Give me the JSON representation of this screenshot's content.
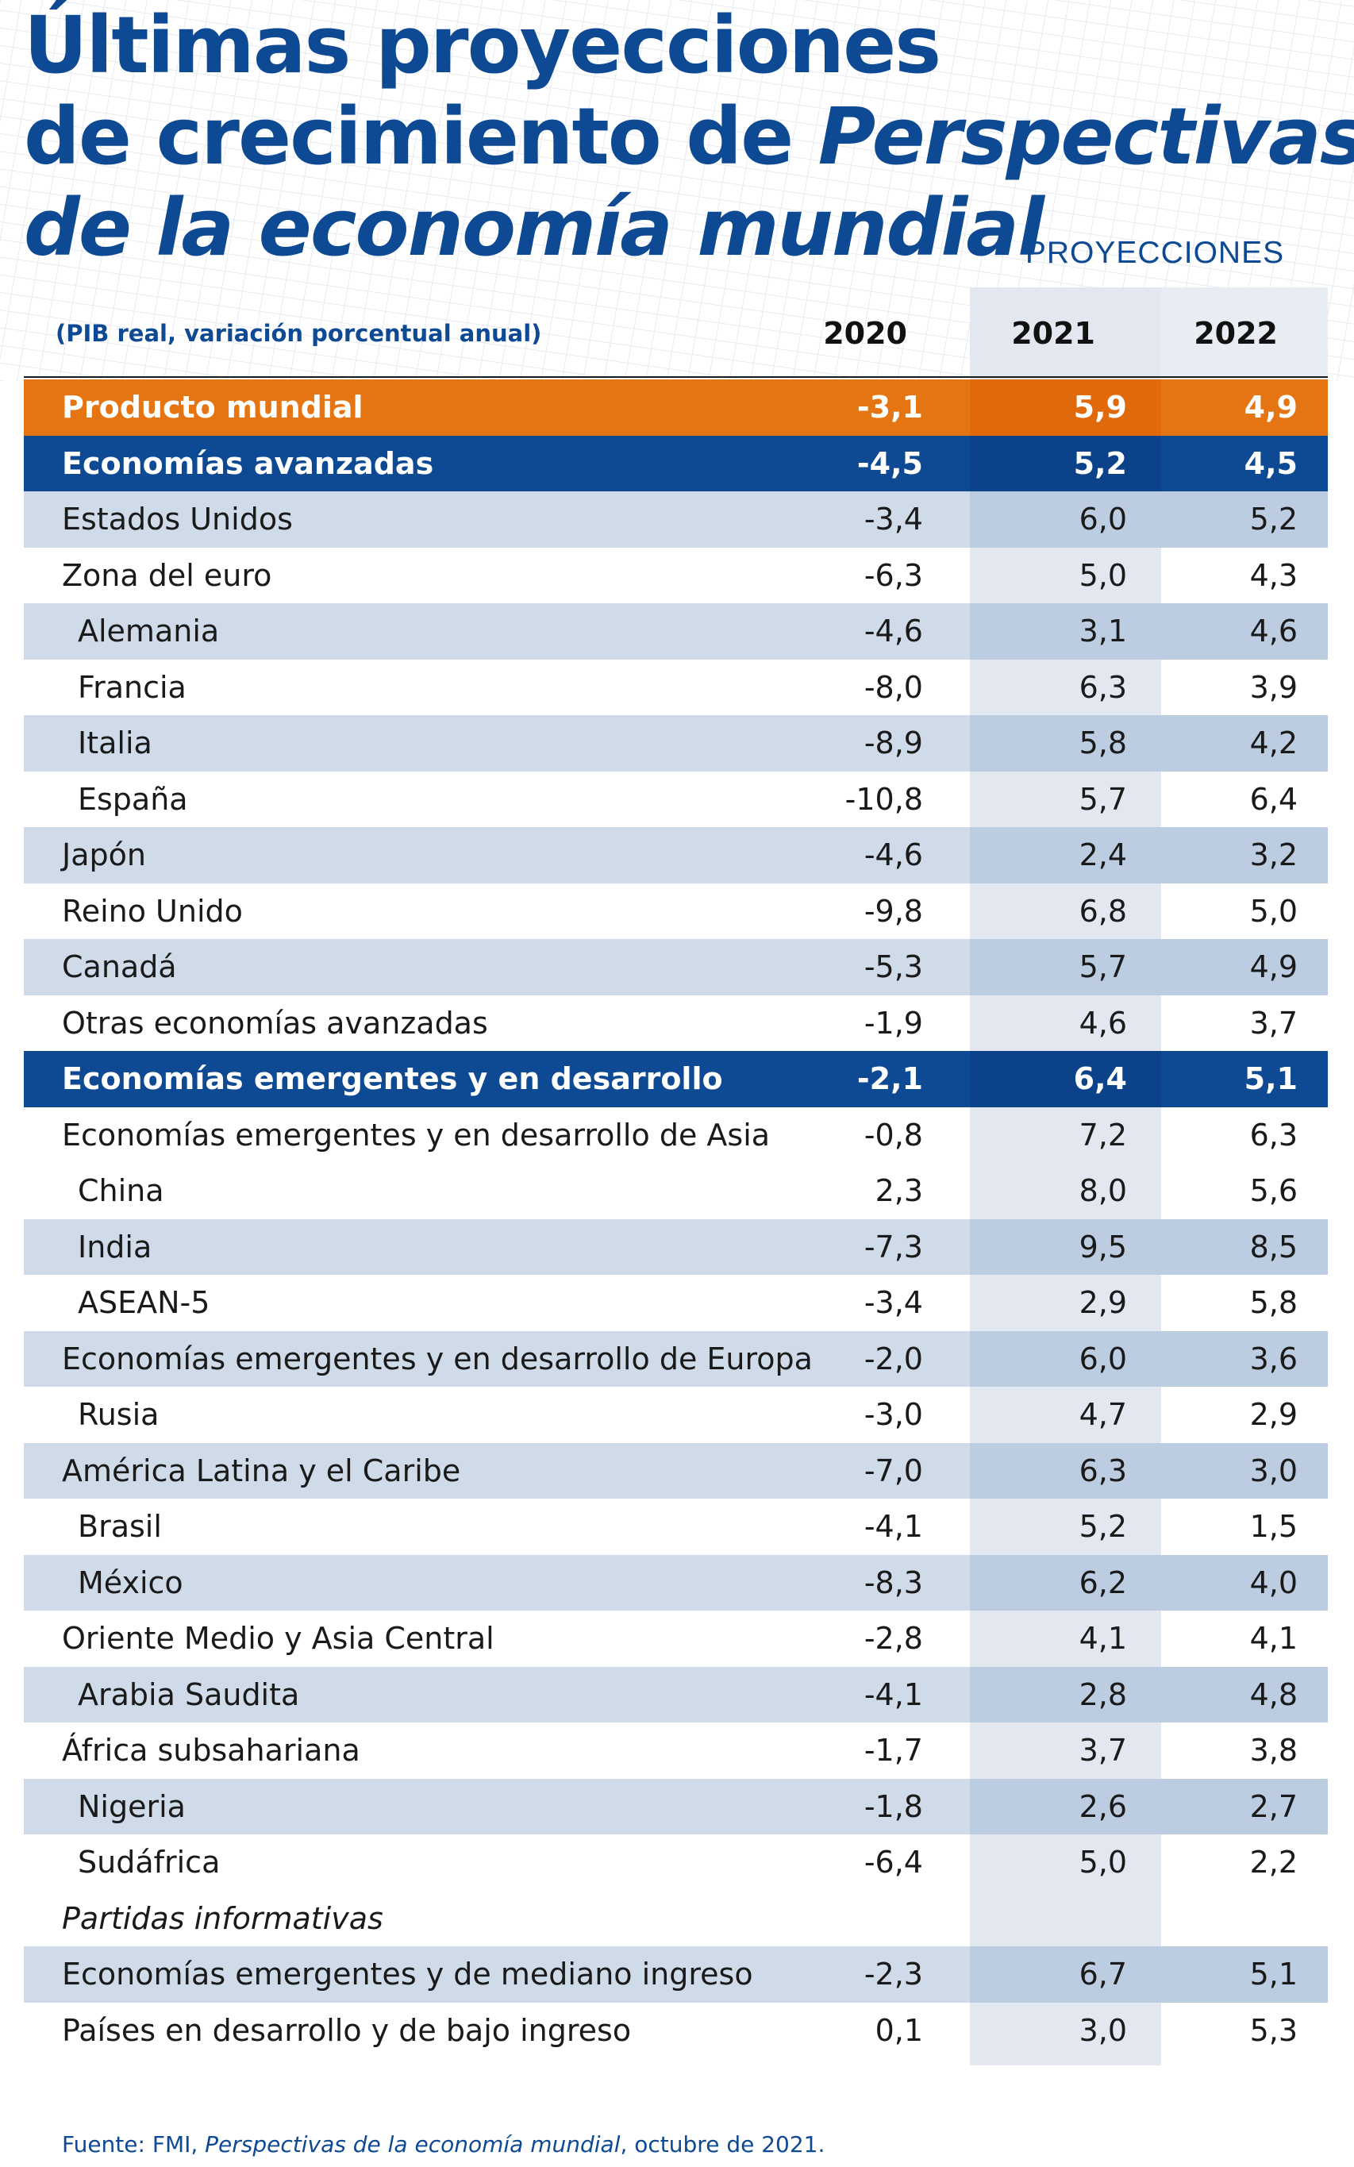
{
  "title": {
    "line1": "Últimas proyecciones",
    "line2_start": "de crecimiento de ",
    "line2_em": "Perspectivas",
    "line3": "de la economía mundial"
  },
  "projections_label": "PROYECCIONES",
  "subtitle": "(PIB real, variación porcentual anual)",
  "columns": [
    "2020",
    "2021",
    "2022"
  ],
  "rows": [
    {
      "label": "Producto mundial",
      "v2020": "-3,1",
      "v2021": "5,9",
      "v2022": "4,9"
    },
    {
      "label": "Economías avanzadas",
      "v2020": "-4,5",
      "v2021": "5,2",
      "v2022": "4,5"
    },
    {
      "label": "Estados Unidos",
      "v2020": "-3,4",
      "v2021": "6,0",
      "v2022": "5,2"
    },
    {
      "label": "Zona del euro",
      "v2020": "-6,3",
      "v2021": "5,0",
      "v2022": "4,3"
    },
    {
      "label": "Alemania",
      "v2020": "-4,6",
      "v2021": "3,1",
      "v2022": "4,6"
    },
    {
      "label": "Francia",
      "v2020": "-8,0",
      "v2021": "6,3",
      "v2022": "3,9"
    },
    {
      "label": "Italia",
      "v2020": "-8,9",
      "v2021": "5,8",
      "v2022": "4,2"
    },
    {
      "label": "España",
      "v2020": "-10,8",
      "v2021": "5,7",
      "v2022": "6,4"
    },
    {
      "label": "Japón",
      "v2020": "-4,6",
      "v2021": "2,4",
      "v2022": "3,2"
    },
    {
      "label": "Reino Unido",
      "v2020": "-9,8",
      "v2021": "6,8",
      "v2022": "5,0"
    },
    {
      "label": "Canadá",
      "v2020": "-5,3",
      "v2021": "5,7",
      "v2022": "4,9"
    },
    {
      "label": "Otras economías avanzadas",
      "v2020": "-1,9",
      "v2021": "4,6",
      "v2022": "3,7"
    },
    {
      "label": "Economías emergentes y en desarrollo",
      "v2020": "-2,1",
      "v2021": "6,4",
      "v2022": "5,1"
    },
    {
      "label": "Economías emergentes y en desarrollo de Asia",
      "v2020": "-0,8",
      "v2021": "7,2",
      "v2022": "6,3"
    },
    {
      "label": "China",
      "v2020": "2,3",
      "v2021": "8,0",
      "v2022": "5,6"
    },
    {
      "label": "India",
      "v2020": "-7,3",
      "v2021": "9,5",
      "v2022": "8,5"
    },
    {
      "label": "ASEAN-5",
      "v2020": "-3,4",
      "v2021": "2,9",
      "v2022": "5,8"
    },
    {
      "label": "Economías emergentes y en desarrollo de Europa",
      "v2020": "-2,0",
      "v2021": "6,0",
      "v2022": "3,6"
    },
    {
      "label": "Rusia",
      "v2020": "-3,0",
      "v2021": "4,7",
      "v2022": "2,9"
    },
    {
      "label": "América Latina y el Caribe",
      "v2020": "-7,0",
      "v2021": "6,3",
      "v2022": "3,0"
    },
    {
      "label": "Brasil",
      "v2020": "-4,1",
      "v2021": "5,2",
      "v2022": "1,5"
    },
    {
      "label": "México",
      "v2020": "-8,3",
      "v2021": "6,2",
      "v2022": "4,0"
    },
    {
      "label": "Oriente Medio y Asia Central",
      "v2020": "-2,8",
      "v2021": "4,1",
      "v2022": "4,1"
    },
    {
      "label": "Arabia Saudita",
      "v2020": "-4,1",
      "v2021": "2,8",
      "v2022": "4,8"
    },
    {
      "label": "África subsahariana",
      "v2020": "-1,7",
      "v2021": "3,7",
      "v2022": "3,8"
    },
    {
      "label": "Nigeria",
      "v2020": "-1,8",
      "v2021": "2,6",
      "v2022": "2,7"
    },
    {
      "label": "Sudáfrica",
      "v2020": "-6,4",
      "v2021": "5,0",
      "v2022": "2,2"
    },
    {
      "label": "Partidas informativas",
      "v2020": "",
      "v2021": "",
      "v2022": ""
    },
    {
      "label": "Economías emergentes y de mediano ingreso",
      "v2020": "-2,3",
      "v2021": "6,7",
      "v2022": "5,1"
    },
    {
      "label": "Países en desarrollo y de bajo ingreso",
      "v2020": "0,1",
      "v2021": "3,0",
      "v2022": "5,3"
    }
  ],
  "source": {
    "prefix": "Fuente: FMI, ",
    "em": "Perspectivas de la economía mundial",
    "suffix": ", octubre de 2021."
  },
  "colors": {
    "navy": "#0e4a93",
    "orange": "#e57512",
    "stripe": "#cfdbe9",
    "stripe_dark": "#bdcde1",
    "projection_shade": "#e3e8f0"
  }
}
